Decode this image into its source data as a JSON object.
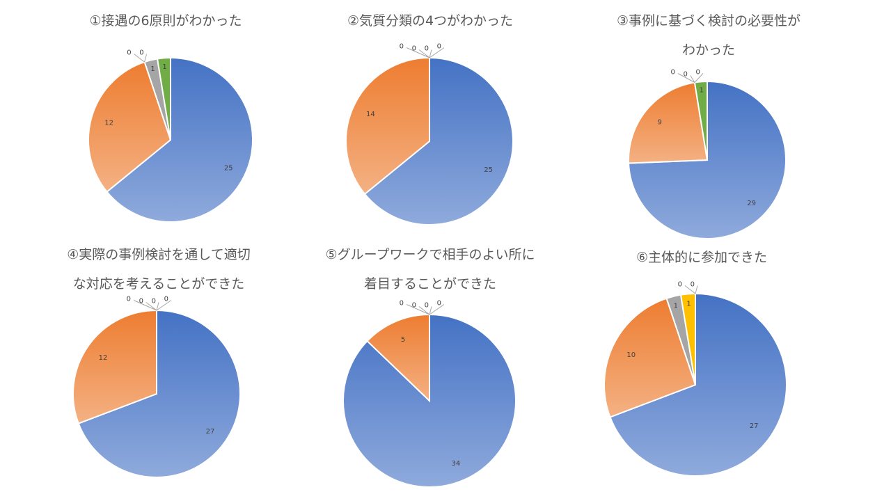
{
  "colors": {
    "blue_top": "#4472C4",
    "blue_bottom": "#8FAADC",
    "orange_top": "#ED7D31",
    "orange_bottom": "#F4B183",
    "gray": "#A5A5A5",
    "yellow": "#FFC000",
    "green": "#70AD47",
    "leader": "#A6A6A6",
    "stroke": "#FFFFFF"
  },
  "chart_data": [
    {
      "type": "pie",
      "title_lines": [
        "①接遇の6原則がわかった"
      ],
      "values": [
        25,
        12,
        0,
        0,
        1,
        1
      ],
      "series_colors": [
        "blue",
        "orange",
        "gray",
        "yellow",
        "gray",
        "green"
      ],
      "data_labels": [
        "25",
        "12",
        "0",
        "0",
        "1",
        "1"
      ]
    },
    {
      "type": "pie",
      "title_lines": [
        "②気質分類の4つがわかった"
      ],
      "values": [
        25,
        14,
        0,
        0,
        0,
        0
      ],
      "series_colors": [
        "blue",
        "orange",
        "gray",
        "yellow",
        "gray",
        "green"
      ],
      "data_labels": [
        "25",
        "14",
        "0",
        "0",
        "0",
        "0"
      ]
    },
    {
      "type": "pie",
      "title_lines": [
        "③事例に基づく検討の必要性が",
        "わかった"
      ],
      "values": [
        29,
        9,
        0,
        0,
        0,
        1
      ],
      "series_colors": [
        "blue",
        "orange",
        "gray",
        "yellow",
        "gray",
        "green"
      ],
      "data_labels": [
        "29",
        "9",
        "0",
        "0",
        "0",
        "1"
      ]
    },
    {
      "type": "pie",
      "title_lines": [
        "④実際の事例検討を通して適切",
        "な対応を考えることができた"
      ],
      "values": [
        27,
        12,
        0,
        0,
        0,
        0
      ],
      "series_colors": [
        "blue",
        "orange",
        "gray",
        "yellow",
        "gray",
        "green"
      ],
      "data_labels": [
        "27",
        "12",
        "0",
        "0",
        "0",
        "0"
      ]
    },
    {
      "type": "pie",
      "title_lines": [
        "⑤グループワークで相手のよい所に",
        "着目することができた"
      ],
      "values": [
        34,
        5,
        0,
        0,
        0,
        0
      ],
      "series_colors": [
        "blue",
        "orange",
        "gray",
        "yellow",
        "gray",
        "green"
      ],
      "data_labels": [
        "34",
        "5",
        "0",
        "0",
        "0",
        "0"
      ]
    },
    {
      "type": "pie",
      "title_lines": [
        "⑥主体的に参加できた"
      ],
      "values": [
        27,
        10,
        1,
        1,
        0,
        0
      ],
      "series_colors": [
        "blue",
        "orange",
        "gray",
        "yellow",
        "gray",
        "green"
      ],
      "data_labels": [
        "27",
        "10",
        "1",
        "1",
        "0",
        "0"
      ]
    }
  ]
}
